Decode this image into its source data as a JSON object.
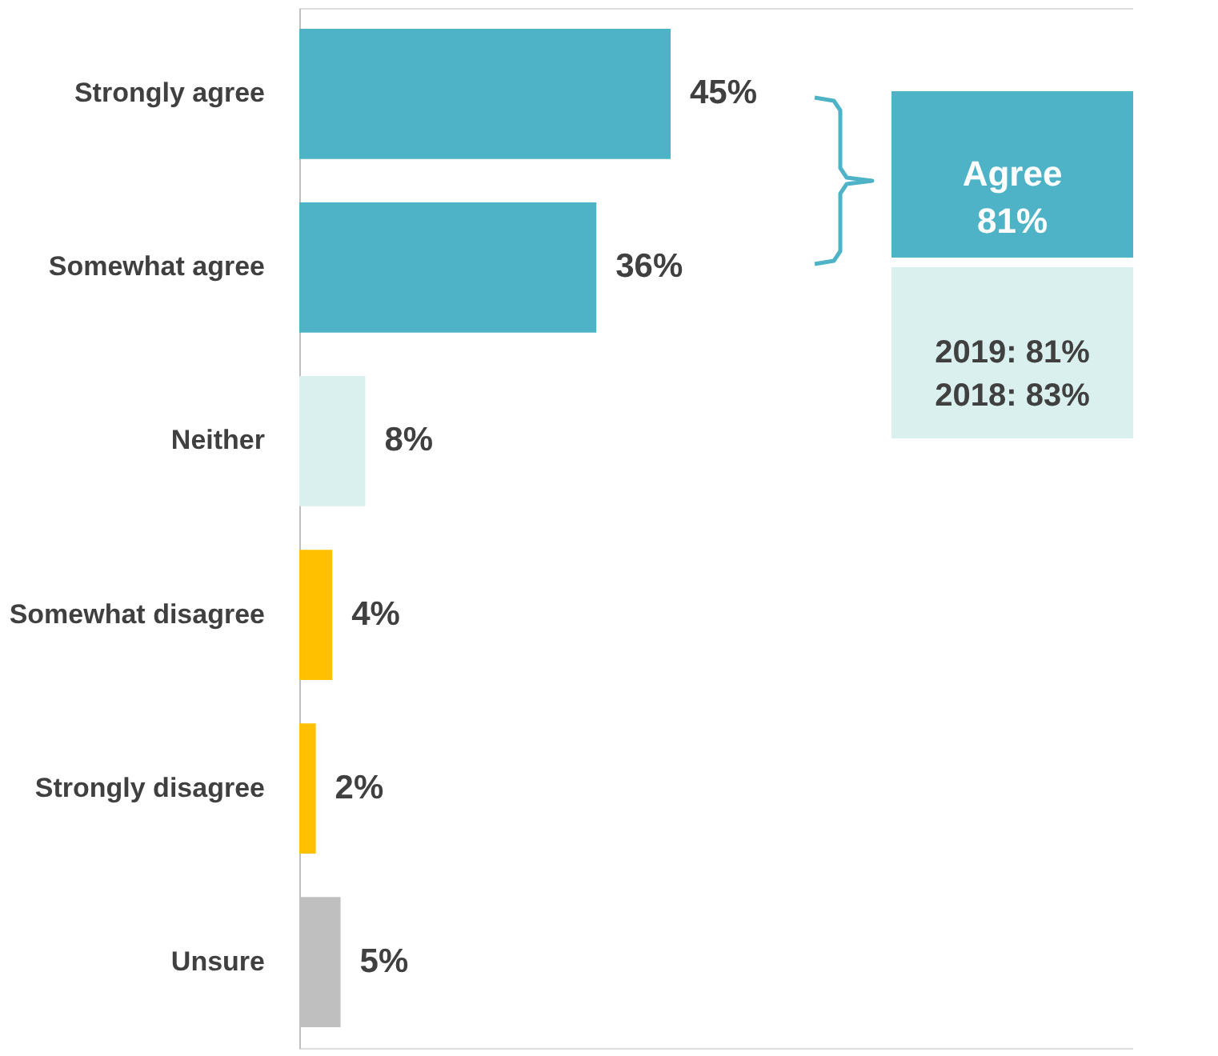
{
  "chart_data": {
    "type": "bar",
    "orientation": "horizontal",
    "categories": [
      "Strongly agree",
      "Somewhat agree",
      "Neither",
      "Somewhat disagree",
      "Strongly disagree",
      "Unsure"
    ],
    "values": [
      45,
      36,
      8,
      4,
      2,
      5
    ],
    "value_labels": [
      "45%",
      "36%",
      "8%",
      "4%",
      "2%",
      "5%"
    ],
    "colors": [
      "#4fb3c8",
      "#4fb3c8",
      "#daf0ef",
      "#ffc000",
      "#ffc000",
      "#bfbfbf"
    ],
    "annotations": [
      "Agree\n81%",
      "2019: 81%\n2018: 83%"
    ]
  }
}
